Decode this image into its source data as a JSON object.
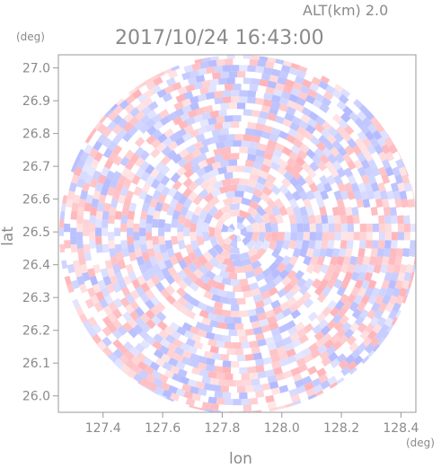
{
  "header": {
    "altitude_label": "ALT(km) 2.0",
    "timestamp": "2017/10/24 16:43:00"
  },
  "chart_data": {
    "type": "heatmap",
    "title": "2017/10/24 16:43:00",
    "subtitle": "ALT(km) 2.0",
    "xlabel": "lon",
    "ylabel": "lat",
    "x_unit": "(deg)",
    "y_unit": "(deg)",
    "xlim": [
      127.25,
      128.45
    ],
    "ylim": [
      25.95,
      27.04
    ],
    "x_ticks": [
      "127.4",
      "127.6",
      "127.8",
      "128.0",
      "128.2",
      "128.4"
    ],
    "y_ticks": [
      "26.0",
      "26.1",
      "26.2",
      "26.3",
      "26.4",
      "26.5",
      "26.6",
      "26.7",
      "26.8",
      "26.9",
      "27.0"
    ],
    "radar_center": {
      "lon": 127.85,
      "lat": 26.5
    },
    "colors": {
      "negative": "#9aa3ff",
      "positive": "#ff9aa0",
      "neutral": "#ffffff",
      "axis": "#999999"
    },
    "grid": false,
    "legend": "none"
  }
}
